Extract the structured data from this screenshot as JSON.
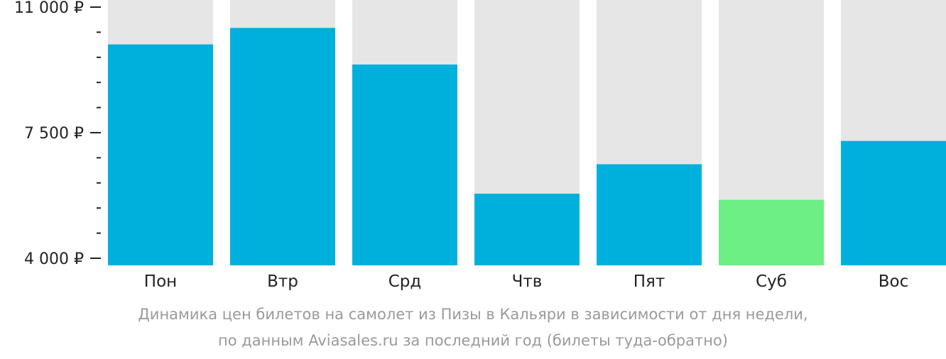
{
  "chart_data": {
    "type": "bar",
    "categories": [
      "Пон",
      "Втр",
      "Срд",
      "Чтв",
      "Пят",
      "Суб",
      "Вос"
    ],
    "values": [
      9960,
      10420,
      9400,
      5800,
      6620,
      5630,
      7270
    ],
    "ylim": [
      4000,
      11000
    ],
    "y_ticks": [
      {
        "value": 11000,
        "label": "11 000 ₽"
      },
      {
        "value": 7500,
        "label": "7 500 ₽"
      },
      {
        "value": 4000,
        "label": "4 000 ₽"
      }
    ],
    "minor_tick_step": 700,
    "highlight_index": 5,
    "grid": false,
    "legend": "none"
  },
  "colors": {
    "bar": "#00b0dc",
    "highlight": "#6eef85",
    "track": "#e6e6e6",
    "axis_text": "#222222",
    "caption": "#9a9a9a"
  },
  "caption": {
    "line1": "Динамика цен билетов на самолет из Пизы в Кальяри в зависимости от дня недели,",
    "line2": "по данным Aviasales.ru за последний год (билеты туда-обратно)"
  }
}
